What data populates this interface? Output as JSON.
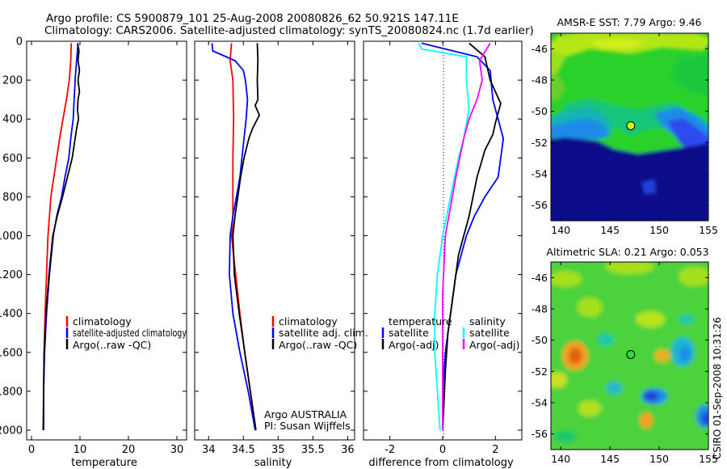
{
  "title": {
    "line1": "Argo profile: CS 5900879_101 25-Aug-2008 20080826_62 50.921S 147.11E",
    "line2": "Climatology: CARS2006. Satellite-adjusted climatology: synTS_20080824.nc (1.7d earlier)"
  },
  "side_label": "CSIRO 01-Sep-2008 10:31:26",
  "colors": {
    "climatology": "#ff0000",
    "satellite": "#0000ff",
    "argo": "#000000",
    "temperature_diff": "#00ffff",
    "salinity_diff": "#ff00ff"
  },
  "chart_data": [
    {
      "id": "temperature",
      "type": "line",
      "xlabel": "temperature",
      "ylabel": "",
      "xlim": [
        -1,
        32
      ],
      "ylim": [
        2050,
        0
      ],
      "xticks": [
        0,
        10,
        20,
        30
      ],
      "yticks": [
        0,
        200,
        400,
        600,
        800,
        1000,
        1200,
        1400,
        1600,
        1800,
        2000
      ],
      "legend": {
        "location": "lower-right",
        "entries": [
          {
            "label": "climatology",
            "color": "#ff0000"
          },
          {
            "label": "satellite-adjusted climatology",
            "color": "#0000ff"
          },
          {
            "label": "Argo(..raw -QC)",
            "color": "#000000"
          }
        ]
      },
      "series": [
        {
          "name": "climatology",
          "color": "#ff0000",
          "points": [
            [
              8.2,
              10
            ],
            [
              8.1,
              100
            ],
            [
              7.8,
              200
            ],
            [
              7.2,
              300
            ],
            [
              6.5,
              400
            ],
            [
              5.8,
              500
            ],
            [
              5.2,
              600
            ],
            [
              4.6,
              700
            ],
            [
              4.0,
              800
            ],
            [
              3.7,
              900
            ],
            [
              3.4,
              1000
            ],
            [
              3.1,
              1200
            ],
            [
              2.8,
              1400
            ],
            [
              2.6,
              1600
            ],
            [
              2.5,
              1800
            ],
            [
              2.5,
              2000
            ]
          ]
        },
        {
          "name": "satellite-adjusted climatology",
          "color": "#0000ff",
          "points": [
            [
              9.6,
              10
            ],
            [
              9.3,
              100
            ],
            [
              9.0,
              200
            ],
            [
              8.8,
              300
            ],
            [
              8.6,
              400
            ],
            [
              8.1,
              500
            ],
            [
              7.7,
              600
            ],
            [
              6.9,
              700
            ],
            [
              6.2,
              800
            ],
            [
              5.2,
              900
            ],
            [
              4.5,
              1000
            ],
            [
              3.7,
              1200
            ],
            [
              3.1,
              1400
            ],
            [
              2.7,
              1600
            ],
            [
              2.5,
              1800
            ],
            [
              2.5,
              2000
            ]
          ]
        },
        {
          "name": "Argo(..raw -QC)",
          "color": "#000000",
          "points": [
            [
              9.5,
              10
            ],
            [
              9.8,
              50
            ],
            [
              9.6,
              100
            ],
            [
              9.9,
              150
            ],
            [
              9.6,
              200
            ],
            [
              9.9,
              260
            ],
            [
              9.6,
              300
            ],
            [
              9.5,
              350
            ],
            [
              9.7,
              400
            ],
            [
              9.3,
              450
            ],
            [
              9.0,
              500
            ],
            [
              8.4,
              600
            ],
            [
              7.4,
              700
            ],
            [
              6.4,
              800
            ],
            [
              5.3,
              900
            ],
            [
              4.4,
              1000
            ],
            [
              3.6,
              1200
            ],
            [
              3.0,
              1400
            ],
            [
              2.6,
              1600
            ],
            [
              2.5,
              1800
            ],
            [
              2.4,
              2000
            ]
          ]
        }
      ]
    },
    {
      "id": "salinity",
      "type": "line",
      "xlabel": "salinity",
      "ylabel": "",
      "xlim": [
        33.8,
        36.1
      ],
      "ylim": [
        2050,
        0
      ],
      "xticks": [
        34,
        34.5,
        35,
        35.5,
        36
      ],
      "yticks": [
        0,
        200,
        400,
        600,
        800,
        1000,
        1200,
        1400,
        1600,
        1800,
        2000
      ],
      "legend": {
        "location": "lower-right",
        "entries": [
          {
            "label": "climatology",
            "color": "#ff0000"
          },
          {
            "label": "satellite adj. clim.",
            "color": "#0000ff"
          },
          {
            "label": "Argo(..raw -QC)",
            "color": "#000000"
          }
        ]
      },
      "annotations": [
        "Argo AUSTRALIA",
        "PI: Susan Wijffels"
      ],
      "series": [
        {
          "name": "climatology",
          "color": "#ff0000",
          "points": [
            [
              34.33,
              10
            ],
            [
              34.31,
              100
            ],
            [
              34.35,
              200
            ],
            [
              34.36,
              400
            ],
            [
              34.35,
              600
            ],
            [
              34.35,
              800
            ],
            [
              34.35,
              900
            ],
            [
              34.33,
              1000
            ],
            [
              34.36,
              1100
            ],
            [
              34.39,
              1200
            ],
            [
              34.45,
              1400
            ],
            [
              34.52,
              1600
            ],
            [
              34.6,
              1800
            ],
            [
              34.68,
              2000
            ]
          ]
        },
        {
          "name": "satellite adj. clim.",
          "color": "#0000ff",
          "points": [
            [
              34.05,
              10
            ],
            [
              34.06,
              50
            ],
            [
              34.38,
              100
            ],
            [
              34.5,
              150
            ],
            [
              34.53,
              200
            ],
            [
              34.56,
              300
            ],
            [
              34.54,
              400
            ],
            [
              34.51,
              500
            ],
            [
              34.48,
              600
            ],
            [
              34.45,
              700
            ],
            [
              34.4,
              800
            ],
            [
              34.35,
              900
            ],
            [
              34.31,
              1000
            ],
            [
              34.3,
              1200
            ],
            [
              34.35,
              1400
            ],
            [
              34.45,
              1600
            ],
            [
              34.57,
              1800
            ],
            [
              34.67,
              2000
            ]
          ]
        },
        {
          "name": "Argo(..raw -QC)",
          "color": "#000000",
          "points": [
            [
              34.7,
              10
            ],
            [
              34.71,
              100
            ],
            [
              34.7,
              200
            ],
            [
              34.71,
              300
            ],
            [
              34.67,
              330
            ],
            [
              34.73,
              380
            ],
            [
              34.63,
              450
            ],
            [
              34.58,
              500
            ],
            [
              34.51,
              600
            ],
            [
              34.46,
              700
            ],
            [
              34.42,
              800
            ],
            [
              34.38,
              900
            ],
            [
              34.35,
              1000
            ],
            [
              34.37,
              1200
            ],
            [
              34.44,
              1400
            ],
            [
              34.52,
              1600
            ],
            [
              34.6,
              1800
            ],
            [
              34.68,
              2000
            ]
          ]
        }
      ]
    },
    {
      "id": "difference",
      "type": "line",
      "xlabel": "difference from climatology",
      "ylabel": "",
      "xlim": [
        -3,
        3
      ],
      "ylim": [
        2050,
        0
      ],
      "xticks": [
        -2,
        0,
        2
      ],
      "yticks": [
        0,
        200,
        400,
        600,
        800,
        1000,
        1200,
        1400,
        1600,
        1800,
        2000
      ],
      "zero_line": "dotted",
      "legend": {
        "location": "lower-center",
        "groups": [
          {
            "heading": "temperature",
            "entries": [
              {
                "label": "satellite",
                "color": "#0000ff"
              },
              {
                "label": "Argo(-adj)",
                "color": "#000000"
              }
            ]
          },
          {
            "heading": "salinity",
            "entries": [
              {
                "label": "satellite",
                "color": "#00ffff"
              },
              {
                "label": "Argo(-adj)",
                "color": "#ff00ff"
              }
            ]
          }
        ]
      },
      "series": [
        {
          "name": "temperature satellite",
          "color": "#0000ff",
          "points": [
            [
              -0.8,
              10
            ],
            [
              1.3,
              80
            ],
            [
              1.8,
              150
            ],
            [
              1.9,
              300
            ],
            [
              2.1,
              400
            ],
            [
              2.3,
              500
            ],
            [
              2.2,
              600
            ],
            [
              2.1,
              700
            ],
            [
              1.6,
              800
            ],
            [
              1.2,
              900
            ],
            [
              0.9,
              1000
            ],
            [
              0.5,
              1200
            ],
            [
              0.3,
              1400
            ],
            [
              0.1,
              1600
            ],
            [
              0.0,
              1800
            ],
            [
              0.0,
              2000
            ]
          ]
        },
        {
          "name": "temperature Argo(-adj)",
          "color": "#000000",
          "points": [
            [
              1.0,
              10
            ],
            [
              1.6,
              80
            ],
            [
              1.8,
              200
            ],
            [
              2.2,
              320
            ],
            [
              2.0,
              420
            ],
            [
              1.9,
              480
            ],
            [
              1.6,
              560
            ],
            [
              1.3,
              700
            ],
            [
              1.0,
              900
            ],
            [
              0.8,
              1000
            ],
            [
              0.6,
              1100
            ],
            [
              0.4,
              1300
            ],
            [
              0.2,
              1500
            ],
            [
              0.1,
              1700
            ],
            [
              0.0,
              2000
            ]
          ]
        },
        {
          "name": "salinity satellite",
          "color": "#00ffff",
          "points": [
            [
              -0.9,
              10
            ],
            [
              -0.8,
              40
            ],
            [
              0.9,
              80
            ],
            [
              0.9,
              200
            ],
            [
              1.0,
              350
            ],
            [
              0.8,
              500
            ],
            [
              0.6,
              600
            ],
            [
              0.3,
              800
            ],
            [
              0.0,
              1000
            ],
            [
              -0.2,
              1200
            ],
            [
              -0.3,
              1400
            ],
            [
              -0.3,
              1600
            ],
            [
              -0.2,
              1800
            ],
            [
              -0.1,
              2000
            ]
          ]
        },
        {
          "name": "salinity Argo(-adj)",
          "color": "#ff00ff",
          "points": [
            [
              1.8,
              10
            ],
            [
              1.4,
              100
            ],
            [
              1.5,
              200
            ],
            [
              1.3,
              300
            ],
            [
              1.0,
              400
            ],
            [
              0.8,
              500
            ],
            [
              0.5,
              700
            ],
            [
              0.3,
              850
            ],
            [
              0.1,
              1000
            ],
            [
              0.0,
              1300
            ],
            [
              0.0,
              2000
            ]
          ]
        }
      ]
    },
    {
      "id": "sst-map",
      "type": "heatmap",
      "title": "AMSR-E SST: 7.79 Argo: 9.46",
      "xlim": [
        139,
        155
      ],
      "ylim": [
        -57,
        -45
      ],
      "xticks": [
        140,
        145,
        150,
        155
      ],
      "yticks": [
        -46,
        -48,
        -50,
        -52,
        -54,
        -56
      ],
      "marker": {
        "lon": 147.11,
        "lat": -50.92,
        "color": "#c8ff00"
      }
    },
    {
      "id": "sla-map",
      "type": "heatmap",
      "title": "Altimetric SLA: 0.21 Argo: 0.053",
      "xlim": [
        139,
        155
      ],
      "ylim": [
        -57,
        -45
      ],
      "xticks": [
        140,
        145,
        150,
        155
      ],
      "yticks": [
        -46,
        -48,
        -50,
        -52,
        -54,
        -56
      ],
      "marker": {
        "lon": 147.11,
        "lat": -50.92,
        "color": "#3cd23c"
      }
    }
  ]
}
